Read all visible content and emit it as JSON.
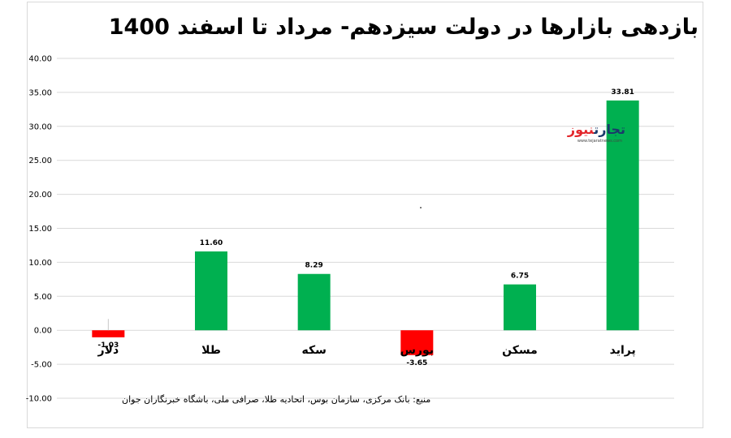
{
  "chart_data": {
    "type": "bar",
    "title": "بازدهی بازارها در دولت سیزدهم- مرداد تا اسفند 1400",
    "categories": [
      "دلار",
      "طلا",
      "سکه",
      "بورس",
      "مسکن",
      "پراید"
    ],
    "values": [
      -1.03,
      11.6,
      8.29,
      -3.65,
      6.75,
      33.81
    ],
    "value_labels": [
      "-1.03",
      "11.60",
      "8.29",
      "-3.65",
      "6.75",
      "33.81"
    ],
    "colors": [
      "#ff0000",
      "#00b050",
      "#00b050",
      "#ff0000",
      "#00b050",
      "#00b050"
    ],
    "ylim": [
      -10,
      40
    ],
    "yticks": [
      "40.00",
      "35.00",
      "30.00",
      "25.00",
      "20.00",
      "15.00",
      "10.00",
      "5.00",
      "0.00",
      "-5.00",
      "-10.00"
    ],
    "ytick_values": [
      40,
      35,
      30,
      25,
      20,
      15,
      10,
      5,
      0,
      -5,
      -10
    ],
    "grid": true,
    "xlabel": "",
    "ylabel": ""
  },
  "source": "منبع: بانک مرکزی، سازمان بوس، اتحادیه طلا، صرافی ملی، باشگاه خبرنگاران جوان",
  "logo": {
    "part1": "تجارت",
    "part2": "نیوز",
    "url": "www.tejaratnews.com",
    "color1": "#1a3a6b",
    "color2": "#e3262b"
  }
}
